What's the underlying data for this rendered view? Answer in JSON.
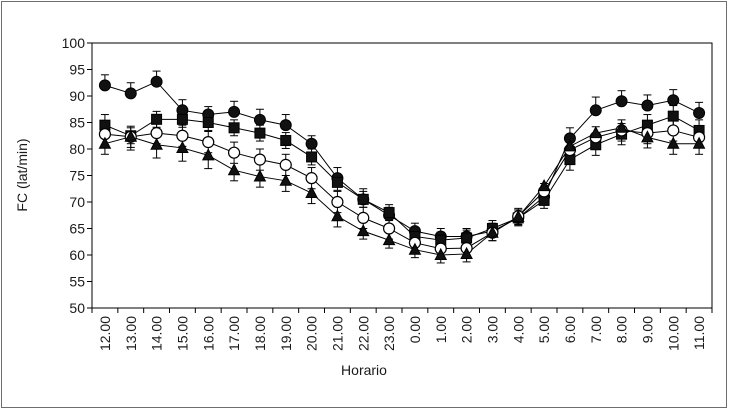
{
  "chart_data": {
    "type": "line",
    "xlabel": "Horario",
    "ylabel": "FC (lat/min)",
    "ylim": [
      50,
      100
    ],
    "yticks": [
      50,
      55,
      60,
      65,
      70,
      75,
      80,
      85,
      90,
      95,
      100
    ],
    "grid": false,
    "legend": "none",
    "categories": [
      "12.00",
      "13.00",
      "14.00",
      "15.00",
      "16.00",
      "17.00",
      "18.00",
      "19.00",
      "20.00",
      "21.00",
      "22.00",
      "23.00",
      "0.00",
      "1.00",
      "2.00",
      "3.00",
      "4.00",
      "5.00",
      "6.00",
      "7.00",
      "8.00",
      "9.00",
      "10.00",
      "11.00"
    ],
    "series": [
      {
        "marker": "filled-circle",
        "values": [
          92,
          90.5,
          92.7,
          87.3,
          86.5,
          87,
          85.5,
          84.5,
          81,
          74.5,
          70.5,
          67.5,
          64.5,
          63.5,
          63.5,
          64.5,
          67,
          71,
          82,
          87.3,
          89,
          88.2,
          89.2,
          86.8
        ],
        "errors": [
          2,
          2,
          2,
          2,
          1.5,
          2,
          2,
          2,
          1.5,
          2,
          2,
          1.5,
          1.5,
          1.5,
          1.5,
          1.5,
          1.5,
          1.5,
          2,
          2.5,
          2,
          2,
          2,
          2
        ]
      },
      {
        "marker": "filled-square",
        "values": [
          84.5,
          82.5,
          85.6,
          85.6,
          85,
          84,
          83,
          81.6,
          78.5,
          73.7,
          70.5,
          68,
          63.5,
          62.8,
          63.2,
          65,
          67,
          70.3,
          78,
          80.8,
          82.8,
          84.5,
          86.2,
          83.5
        ],
        "errors": [
          2,
          1.5,
          1.5,
          1.5,
          1.5,
          1.5,
          1.5,
          1.5,
          1.5,
          1.5,
          1.5,
          1.5,
          1.5,
          1.5,
          1.5,
          1.5,
          1.5,
          1.5,
          2,
          2,
          2,
          2,
          2,
          2
        ]
      },
      {
        "marker": "open-circle",
        "values": [
          82.8,
          82.3,
          83,
          82.5,
          81.3,
          79.3,
          78,
          77,
          74.5,
          70,
          67,
          65,
          62.3,
          61.2,
          61.3,
          64.2,
          67.3,
          72,
          79.8,
          82.2,
          83.5,
          83,
          83.5,
          82.2
        ],
        "errors": [
          2,
          2,
          2,
          2,
          2,
          2,
          2,
          2,
          2,
          2,
          2,
          2,
          1.5,
          1.5,
          1.5,
          1.5,
          1.5,
          1.5,
          2,
          2,
          2,
          2,
          2,
          2
        ]
      },
      {
        "marker": "filled-triangle",
        "values": [
          81,
          82.3,
          80.8,
          80.2,
          78.8,
          76,
          74.8,
          74,
          71.7,
          67.3,
          64.5,
          62.8,
          61,
          60,
          60.2,
          64.2,
          67.2,
          73,
          80.5,
          83,
          84,
          82.2,
          81,
          81
        ],
        "errors": [
          2,
          2.5,
          2.5,
          2.5,
          2.5,
          2,
          2,
          2,
          2,
          2,
          1.5,
          1.5,
          1.5,
          1.5,
          1.5,
          1.5,
          1.5,
          1.5,
          2,
          2,
          2,
          2,
          2,
          2
        ]
      }
    ]
  }
}
